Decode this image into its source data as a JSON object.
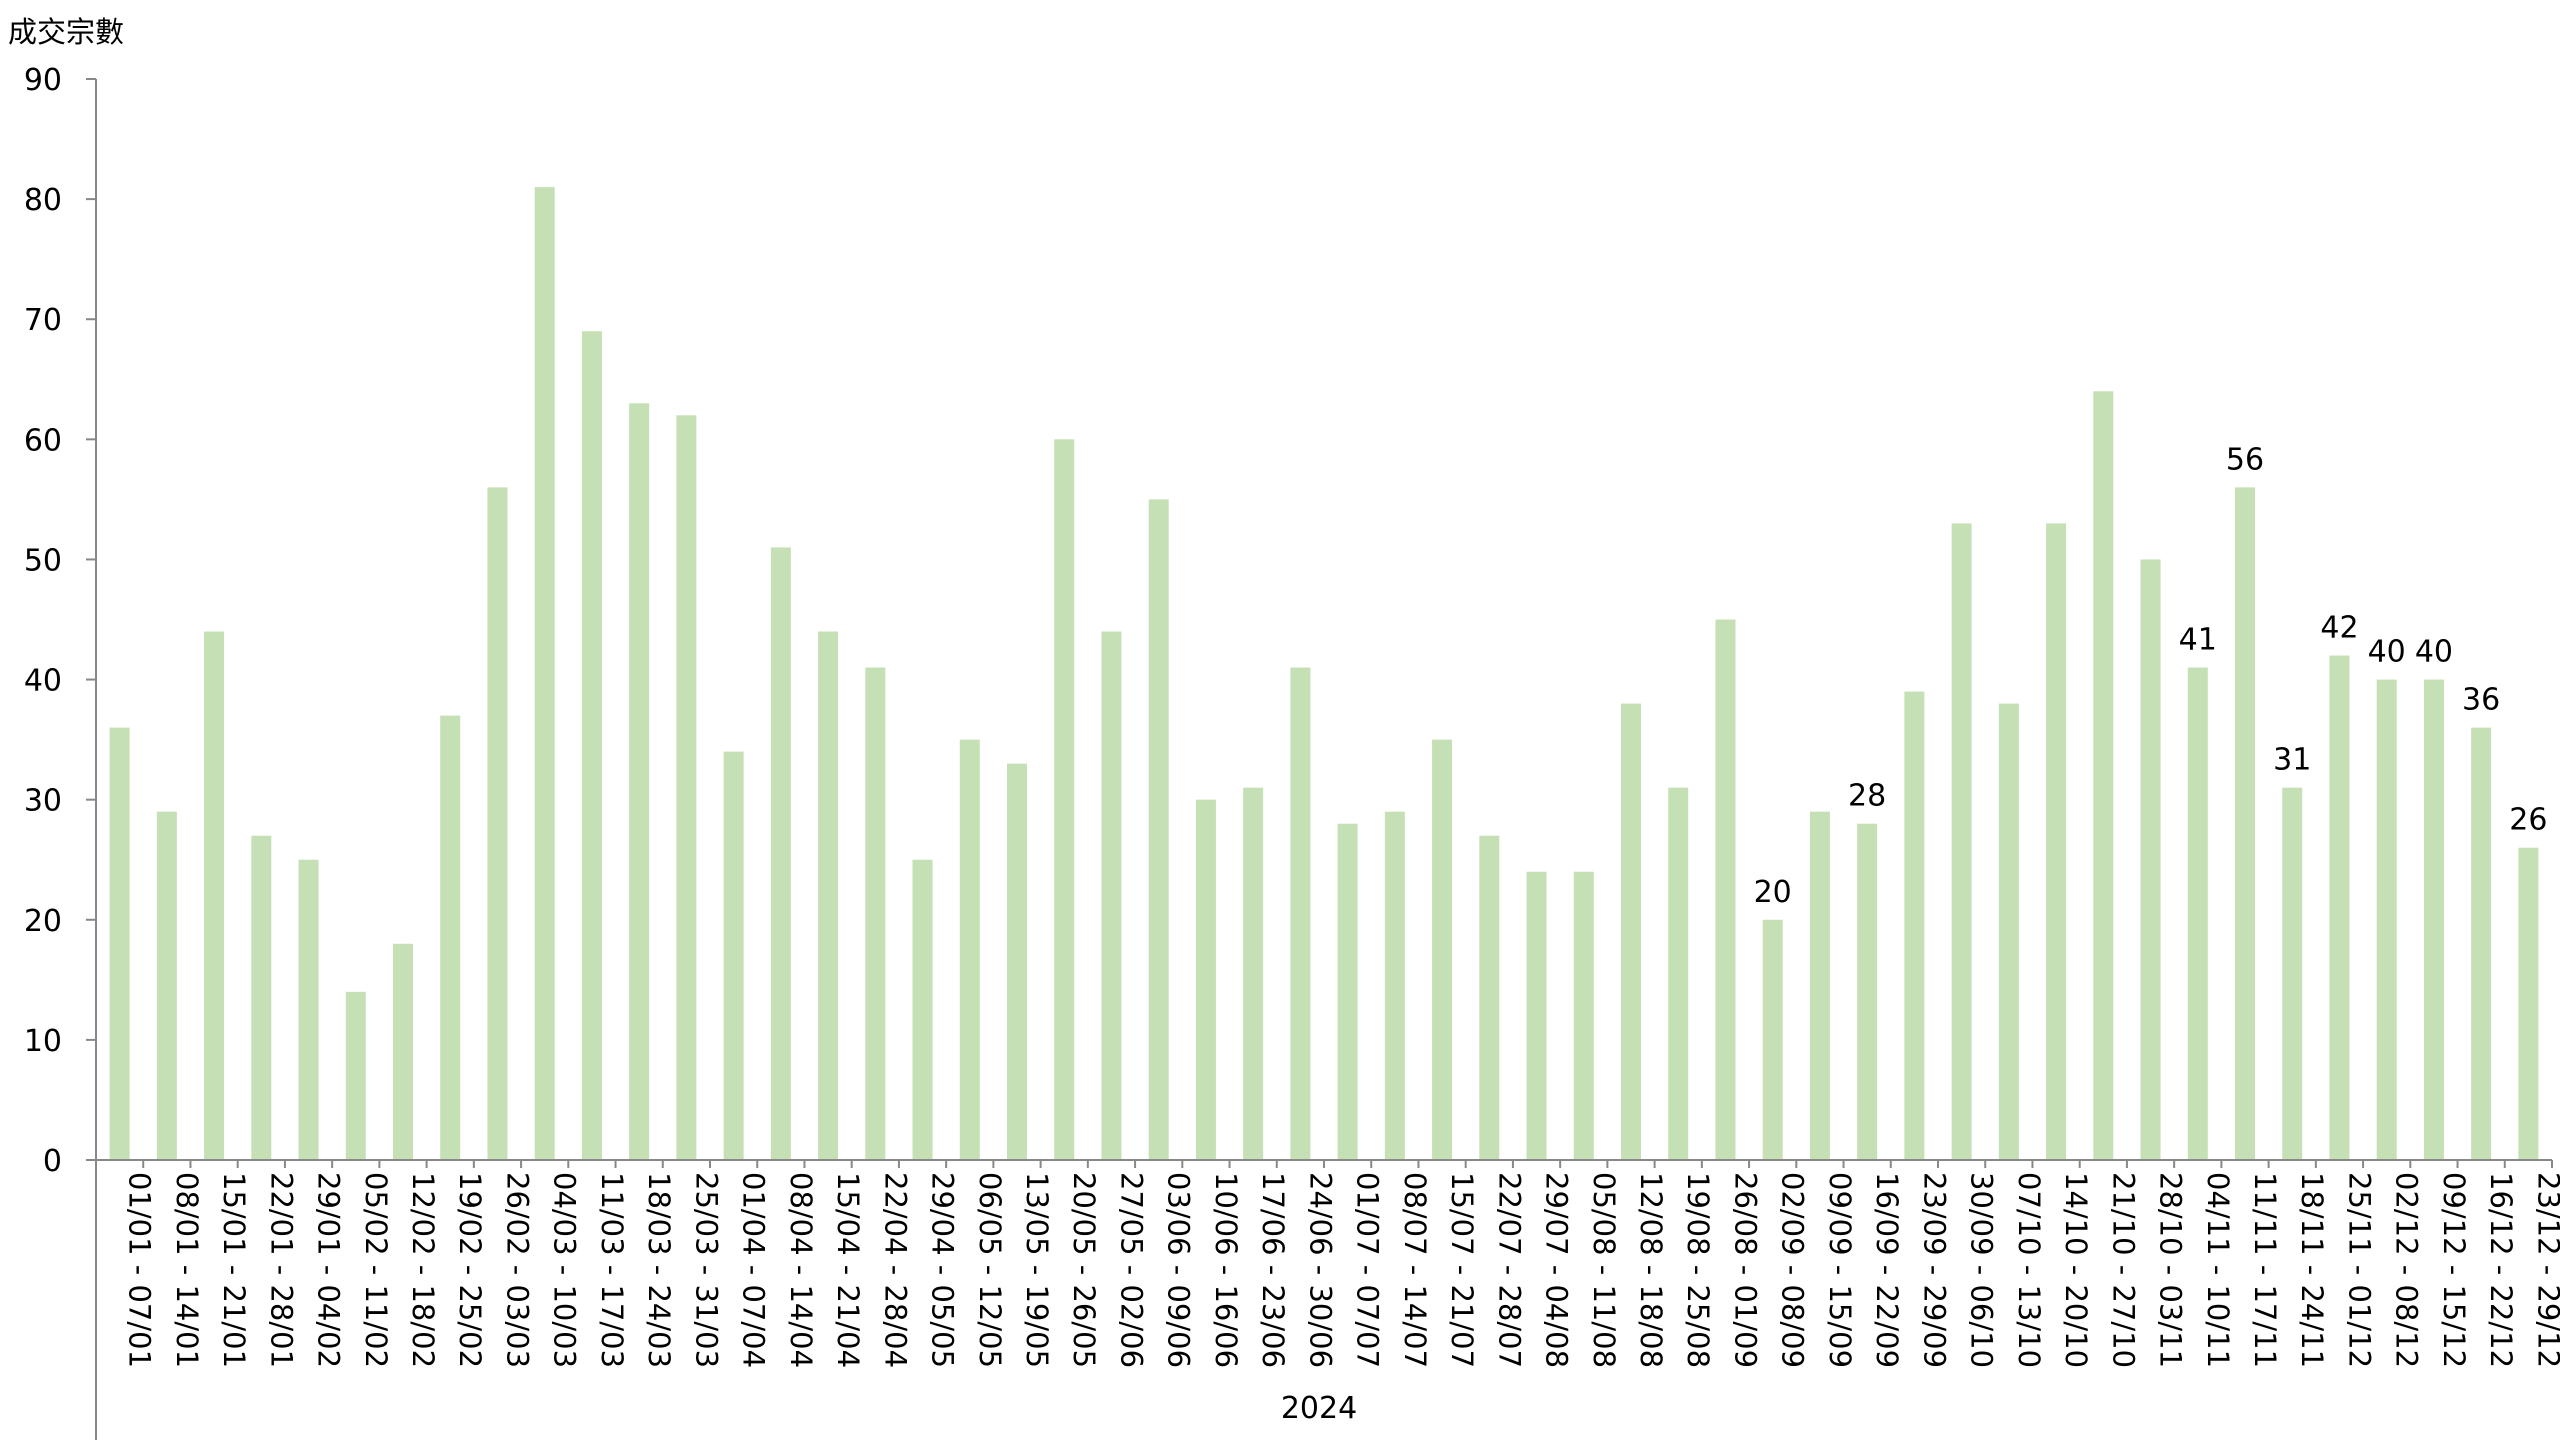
{
  "chart_data": {
    "type": "bar",
    "ylabel": "成交宗數",
    "xgroup": "2024",
    "ylim": [
      0,
      90
    ],
    "yticks": [
      0,
      10,
      20,
      30,
      40,
      50,
      60,
      70,
      80,
      90
    ],
    "grid": false,
    "legend": "none",
    "bar_color": "#c5e0b4",
    "axis_color": "#888888",
    "categories": [
      "01/01 - 07/01",
      "08/01 - 14/01",
      "15/01 - 21/01",
      "22/01 - 28/01",
      "29/01 - 04/02",
      "05/02 - 11/02",
      "12/02 - 18/02",
      "19/02 - 25/02",
      "26/02 - 03/03",
      "04/03 - 10/03",
      "11/03 - 17/03",
      "18/03 - 24/03",
      "25/03 - 31/03",
      "01/04 - 07/04",
      "08/04 - 14/04",
      "15/04 - 21/04",
      "22/04 - 28/04",
      "29/04 - 05/05",
      "06/05 - 12/05",
      "13/05 - 19/05",
      "20/05 - 26/05",
      "27/05 - 02/06",
      "03/06 - 09/06",
      "10/06 - 16/06",
      "17/06 - 23/06",
      "24/06 - 30/06",
      "01/07 - 07/07",
      "08/07 - 14/07",
      "15/07 - 21/07",
      "22/07 - 28/07",
      "29/07 - 04/08",
      "05/08 - 11/08",
      "12/08 - 18/08",
      "19/08 - 25/08",
      "26/08 - 01/09",
      "02/09 - 08/09",
      "09/09 - 15/09",
      "16/09 - 22/09",
      "23/09 - 29/09",
      "30/09 - 06/10",
      "07/10 - 13/10",
      "14/10 - 20/10",
      "21/10 - 27/10",
      "28/10 - 03/11",
      "04/11 - 10/11",
      "11/11 - 17/11",
      "18/11 - 24/11",
      "25/11 - 01/12",
      "02/12 - 08/12",
      "09/12 - 15/12",
      "16/12 - 22/12",
      "23/12 - 29/12"
    ],
    "values": [
      36,
      29,
      44,
      27,
      25,
      14,
      18,
      37,
      56,
      81,
      69,
      63,
      62,
      34,
      51,
      44,
      41,
      25,
      35,
      33,
      60,
      44,
      55,
      30,
      31,
      41,
      28,
      29,
      35,
      27,
      24,
      24,
      38,
      31,
      45,
      20,
      29,
      28,
      39,
      53,
      38,
      53,
      64,
      50,
      41,
      56,
      31,
      42,
      40,
      40,
      36,
      26
    ],
    "data_labels": [
      {
        "index": 35,
        "text": "20"
      },
      {
        "index": 37,
        "text": "28"
      },
      {
        "index": 44,
        "text": "41"
      },
      {
        "index": 45,
        "text": "56"
      },
      {
        "index": 46,
        "text": "31"
      },
      {
        "index": 47,
        "text": "42"
      },
      {
        "index": 48,
        "text": "40"
      },
      {
        "index": 49,
        "text": "40"
      },
      {
        "index": 50,
        "text": "36"
      },
      {
        "index": 51,
        "text": "26"
      }
    ]
  }
}
